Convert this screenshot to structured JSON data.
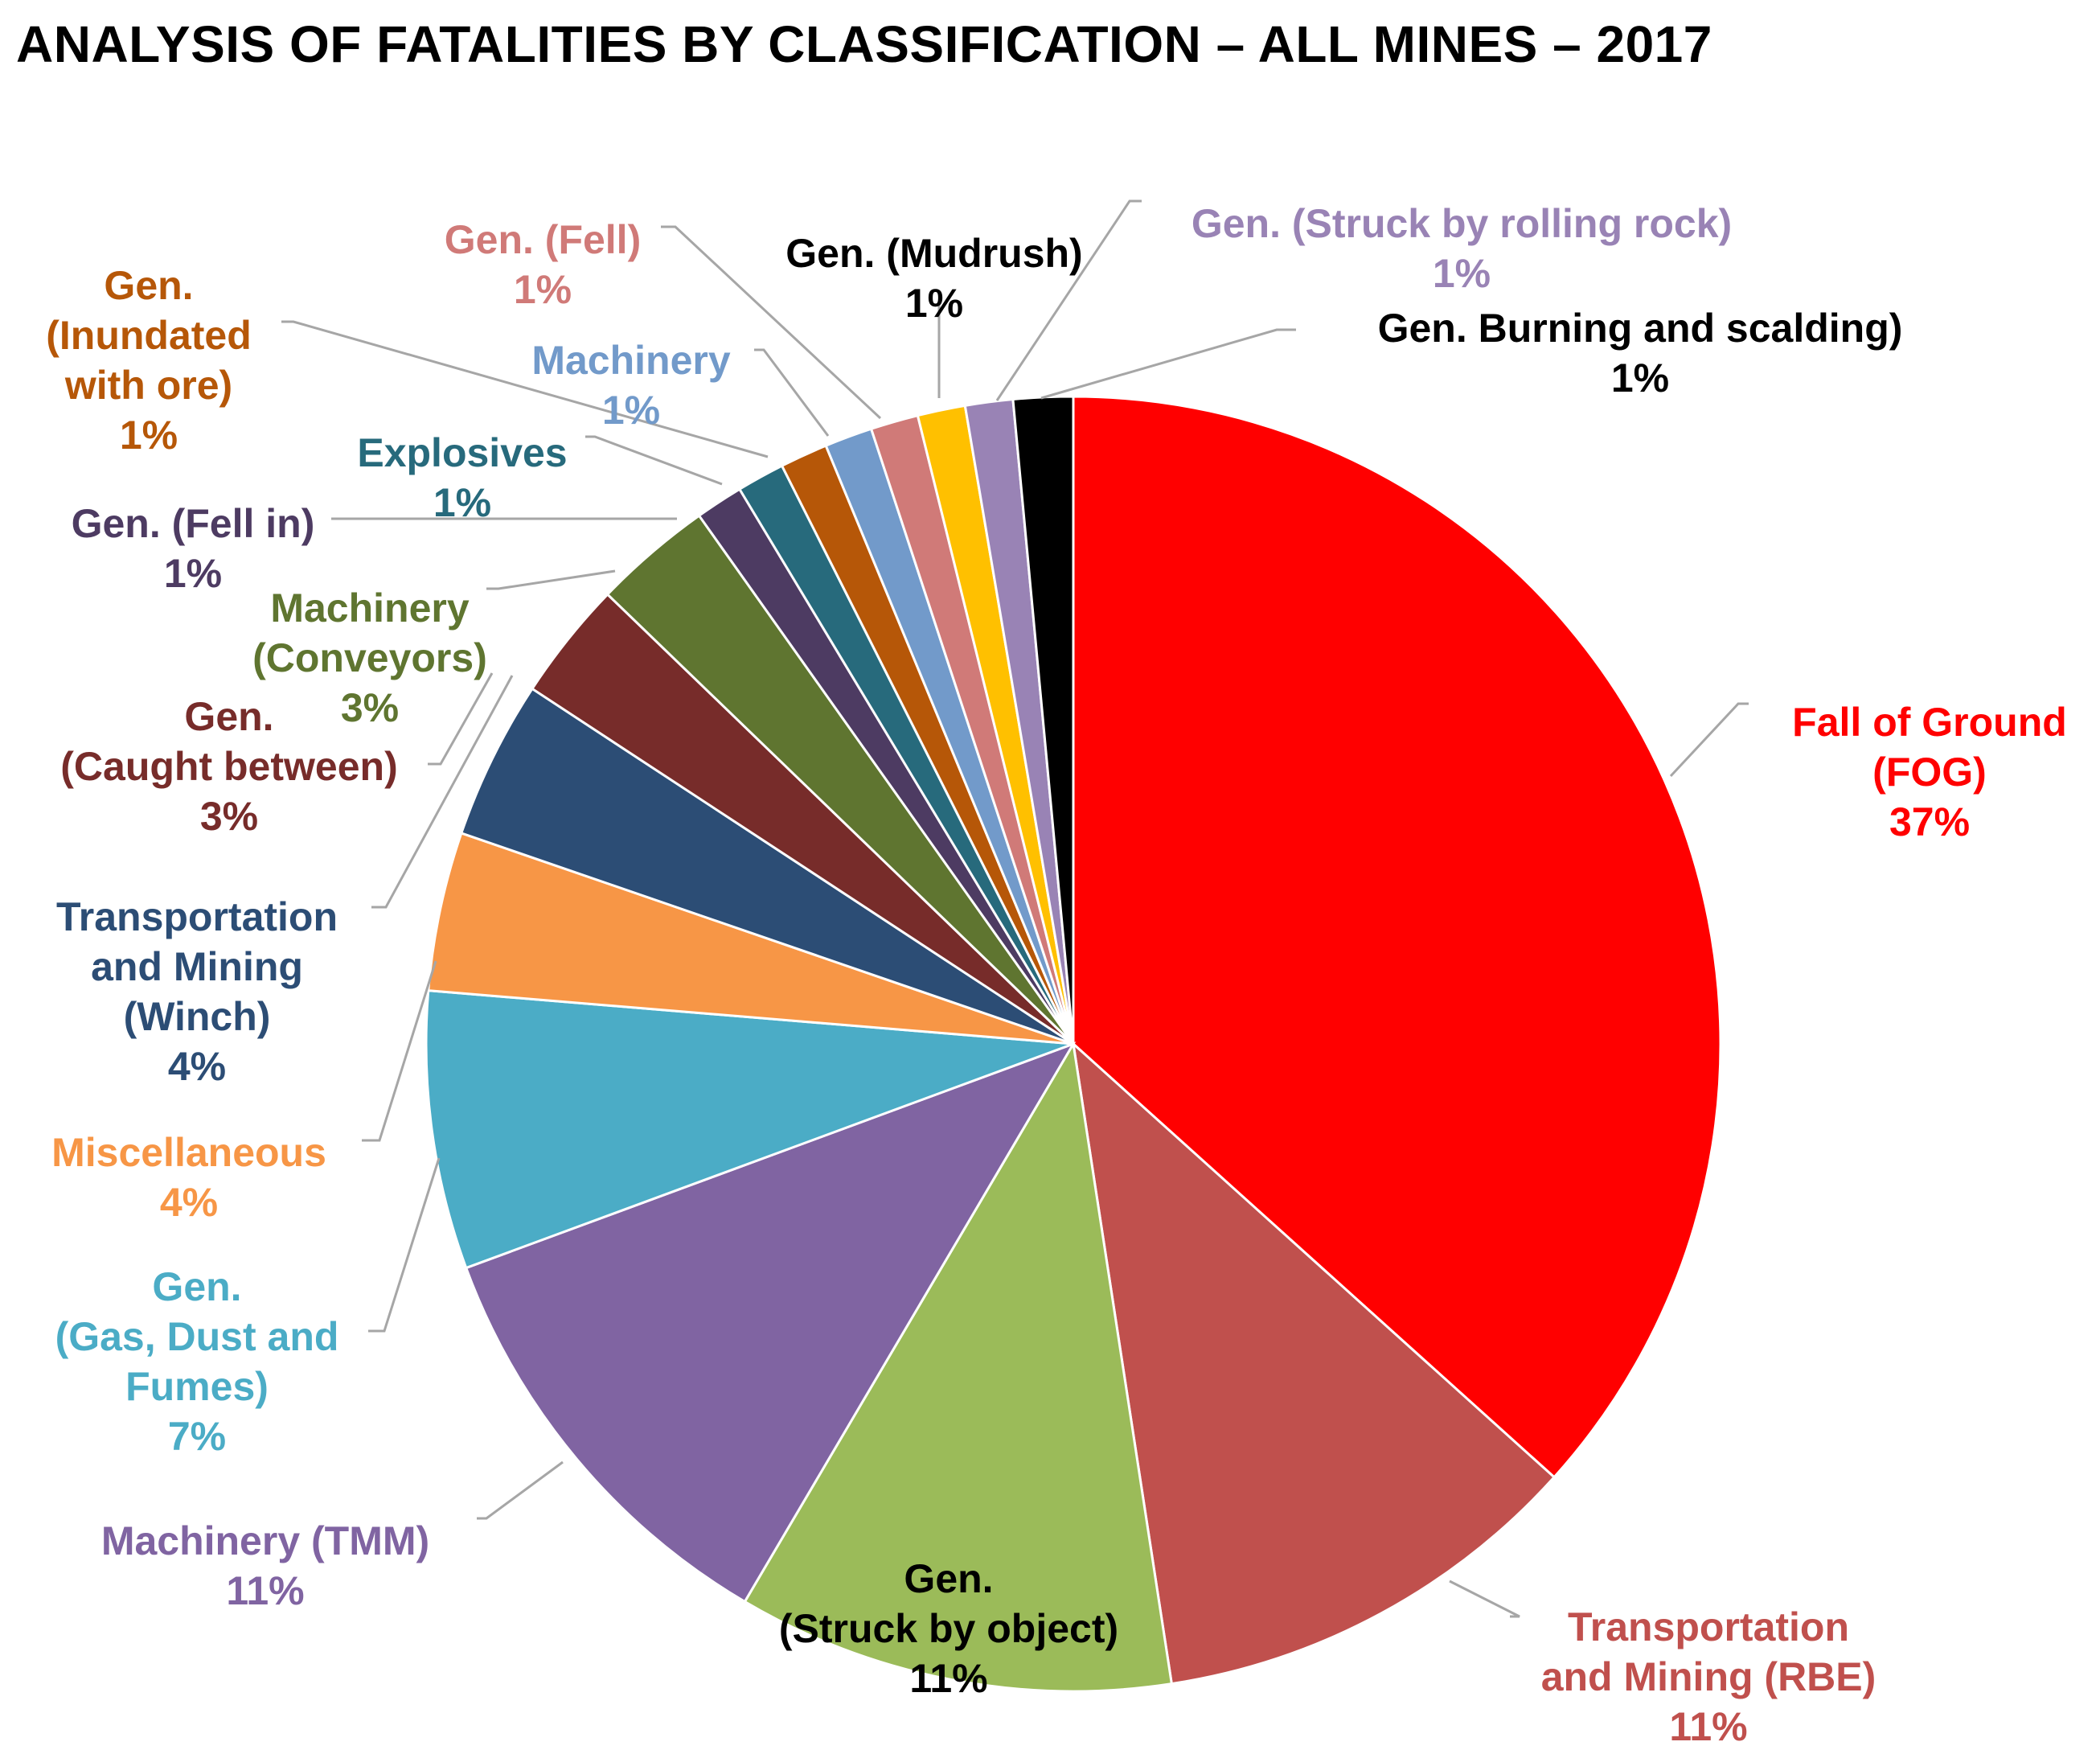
{
  "chart_data": {
    "type": "pie",
    "title": "ANALYSIS OF FATALITIES BY CLASSIFICATION – ALL MINES – 2017",
    "start": "12 o'clock, clockwise",
    "slices": [
      {
        "id": "fog",
        "name": [
          "Fall of Ground",
          "(FOG)"
        ],
        "value": 37,
        "label": "37%",
        "color": "#ff0000"
      },
      {
        "id": "tm-rbe",
        "name": [
          "Transportation",
          "and Mining (RBE)"
        ],
        "value": 11,
        "label": "11%",
        "color": "#c0504d"
      },
      {
        "id": "gen-struck-object",
        "name": [
          "Gen.",
          "(Struck by object)"
        ],
        "value": 11,
        "label": "11%",
        "color": "#9bbb59",
        "text_color": "#000000"
      },
      {
        "id": "machinery-tmm",
        "name": [
          "Machinery (TMM)"
        ],
        "value": 11,
        "label": "11%",
        "color": "#8064a2"
      },
      {
        "id": "gen-gas",
        "name": [
          "Gen.",
          "(Gas, Dust and",
          "Fumes)"
        ],
        "value": 7,
        "label": "7%",
        "color": "#4bacc6"
      },
      {
        "id": "misc",
        "name": [
          "Miscellaneous"
        ],
        "value": 4,
        "label": "4%",
        "color": "#f79646"
      },
      {
        "id": "tm-winch",
        "name": [
          "Transportation",
          "and Mining",
          "(Winch)"
        ],
        "value": 4,
        "label": "4%",
        "color": "#2c4d75"
      },
      {
        "id": "gen-caught",
        "name": [
          "Gen.",
          "(Caught between)"
        ],
        "value": 3,
        "label": "3%",
        "color": "#772c2a"
      },
      {
        "id": "machinery-conveyors",
        "name": [
          "Machinery",
          "(Conveyors)"
        ],
        "value": 3,
        "label": "3%",
        "color": "#5f7530"
      },
      {
        "id": "gen-fell-in",
        "name": [
          "Gen. (Fell in)"
        ],
        "value": 1.2,
        "label": "1%",
        "color": "#4d3b62"
      },
      {
        "id": "explosives",
        "name": [
          "Explosives"
        ],
        "value": 1.2,
        "label": "1%",
        "color": "#276a7c"
      },
      {
        "id": "gen-inundated",
        "name": [
          "Gen.",
          "(Inundated",
          "with ore)"
        ],
        "value": 1.2,
        "label": "1%",
        "color": "#b65708"
      },
      {
        "id": "machinery",
        "name": [
          "Machinery"
        ],
        "value": 1.2,
        "label": "1%",
        "color": "#729aca"
      },
      {
        "id": "gen-fell",
        "name": [
          "Gen. (Fell)"
        ],
        "value": 1.2,
        "label": "1%",
        "color": "#d07a78"
      },
      {
        "id": "gen-mudrush",
        "name": [
          "Gen. (Mudrush)"
        ],
        "value": 1.2,
        "label": "1%",
        "color": "#ffc000",
        "text_color": "#000000"
      },
      {
        "id": "gen-rolling-rock",
        "name": [
          "Gen. (Struck by rolling rock)"
        ],
        "value": 1.2,
        "label": "1%",
        "color": "#9983b5"
      },
      {
        "id": "gen-burning",
        "name": [
          "Gen. Burning and scalding)"
        ],
        "value": 1.5,
        "label": "1%",
        "color": "#000000"
      }
    ]
  }
}
